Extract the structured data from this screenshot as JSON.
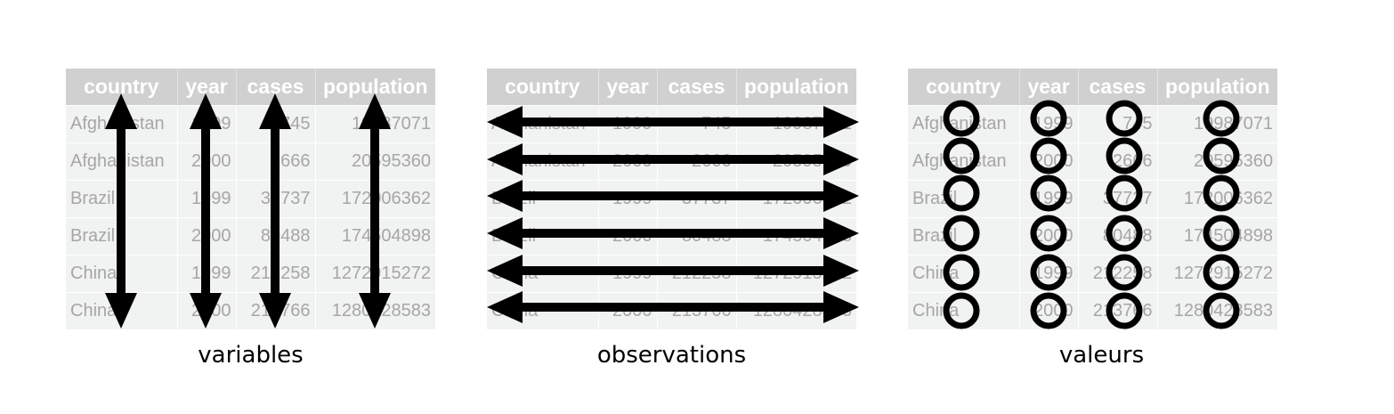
{
  "columns": [
    "country",
    "year",
    "cases",
    "population"
  ],
  "rows": [
    [
      "Afghanistan",
      "1999",
      "745",
      "19987071"
    ],
    [
      "Afghanistan",
      "2000",
      "2666",
      "20595360"
    ],
    [
      "Brazil",
      "1999",
      "37737",
      "172006362"
    ],
    [
      "Brazil",
      "2000",
      "80488",
      "174504898"
    ],
    [
      "China",
      "1999",
      "212258",
      "1272915272"
    ],
    [
      "China",
      "2000",
      "213766",
      "1280428583"
    ]
  ],
  "captions": {
    "variables": "variables",
    "observations": "observations",
    "values": "valeurs"
  }
}
